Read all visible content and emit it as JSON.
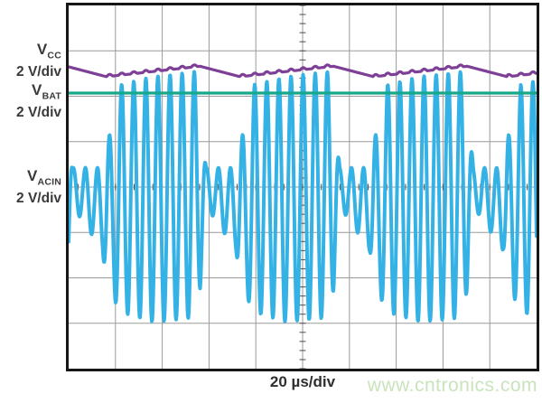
{
  "labels": {
    "vcc": {
      "name": "V",
      "sub": "CC",
      "scale": "2 V/div"
    },
    "vbat": {
      "name": "V",
      "sub": "BAT",
      "scale": "2 V/div"
    },
    "vacin": {
      "name": "V",
      "sub": "ACIN",
      "scale": "2 V/div"
    },
    "timebase": "20 µs/div",
    "watermark": "www.cntronics.com"
  },
  "chart_data": {
    "type": "line",
    "subtype": "oscilloscope",
    "x_axis": {
      "label": "20 µs/div",
      "us_per_div": 20,
      "divisions": 10
    },
    "y_axis": {
      "volts_per_div": 2,
      "divisions": 8
    },
    "grid": {
      "minor_ticks_per_div": 5,
      "line_color": "#9a9a9a",
      "tick_color": "#4d4d4d",
      "border_color": "#161616"
    },
    "traces": [
      {
        "id": "vacin",
        "label": "VACIN 2 V/div",
        "color": "#35b2e5",
        "stroke_px": 4,
        "model": {
          "kind": "am_burst_sine",
          "period_us": 57.1,
          "burst_start_us": 16.2,
          "carrier_period_us": 5.17,
          "envelope_top_bottom_volts": [
            [
              0.0,
              2.3,
              -4.4
            ],
            [
              0.045,
              2.3,
              -4.8
            ],
            [
              0.1,
              4.5,
              -5.5
            ],
            [
              0.35,
              4.86,
              -5.95
            ],
            [
              0.66,
              5.08,
              -5.75
            ],
            [
              0.7,
              4.0,
              -4.5
            ],
            [
              0.745,
              0.85,
              -0.85
            ],
            [
              0.97,
              0.85,
              -2.8
            ],
            [
              1.0,
              2.3,
              -4.4
            ]
          ]
        }
      },
      {
        "id": "vbat",
        "label": "VBAT 2 V/div",
        "color": "#16a888",
        "stroke_px": 3.2,
        "model": {
          "kind": "flat",
          "volts": 4.14
        }
      },
      {
        "id": "vcc",
        "label": "VCC 2 V/div",
        "color": "#7e4096",
        "stroke_px": 3.2,
        "model": {
          "kind": "burst_charge",
          "period_us": 57.1,
          "burst_start_us": 16.2,
          "carrier_period_us": 5.17,
          "burst_fraction": 0.7,
          "v_low": 4.86,
          "v_high": 5.32,
          "ripple_v": 0.09
        }
      }
    ]
  }
}
